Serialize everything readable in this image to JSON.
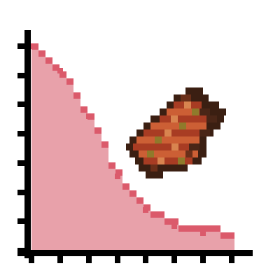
{
  "chart_data": {
    "type": "area",
    "title": "",
    "xlabel": "",
    "ylabel": "",
    "x": [
      0,
      1,
      2,
      3,
      4,
      5,
      6,
      7
    ],
    "series": [
      {
        "values": [
          7.0,
          6.15,
          4.6,
          2.55,
          1.4,
          0.85,
          0.6,
          0.5
        ]
      }
    ],
    "xlim": [
      0,
      7
    ],
    "ylim": [
      0,
      7.5
    ],
    "grid": false,
    "legend": "none",
    "colors": {
      "fill": "#e8a1aa",
      "line": "#db5a6b",
      "axis": "#000000"
    }
  },
  "decoration": {
    "icon": "cooked-meat-pixel-icon",
    "colors": {
      "dark": "#3b1f12",
      "brown": "#6a2f19",
      "red_brown": "#a83c23",
      "orange": "#cc5f35",
      "light": "#d8844f",
      "olive": "#8f7a2b",
      "deep": "#4a2617"
    }
  }
}
